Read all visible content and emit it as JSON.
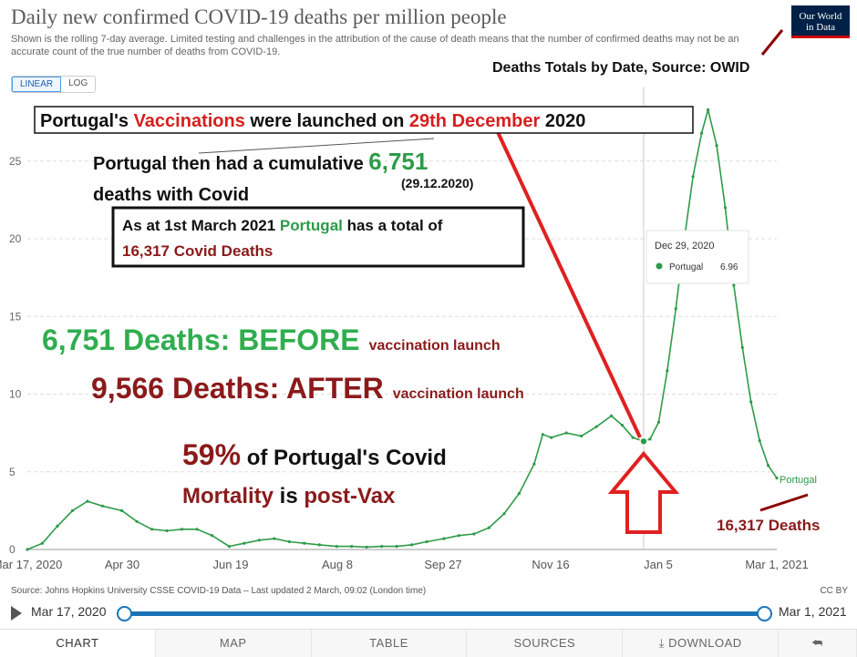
{
  "header": {
    "title": "Daily new confirmed COVID-19 deaths per million people",
    "subtitle": "Shown is the rolling 7-day average. Limited testing and challenges in the attribution of the cause of death means that the number of confirmed deaths may not be an accurate count of the true number of deaths from COVID-19.",
    "logo_line1": "Our World",
    "logo_line2": "in Data",
    "logo_icon": "owid-logo",
    "scale_linear": "LINEAR",
    "scale_log": "LOG"
  },
  "annotations": {
    "source_note": "Deaths Totals by Date, Source: OWID",
    "launch_p1": "Portugal's ",
    "launch_p2": "Vaccinations",
    "launch_p3": " were launched on ",
    "launch_p4": "29th December",
    "launch_p5": " 2020",
    "cum_text": "Portugal then had a cumulative ",
    "cum_value": "6,751",
    "cum_date": "(29.12.2020)",
    "cum_line2": "deaths with Covid",
    "total_line1": "As at 1st March 2021 ",
    "total_country": "Portugal",
    "total_line1b": " has a total of",
    "total_line2": "16,317 Covid Deaths",
    "before_big": "6,751 Deaths: BEFORE",
    "before_small": "vaccination launch",
    "after_big": "9,566 Deaths: AFTER",
    "after_small": "vaccination launch",
    "pct_value": "59%",
    "pct_text": " of Portugal's Covid",
    "pct_word1": "Mortality",
    "pct_text2": " is ",
    "pct_word2": "post-Vax",
    "final_label": "16,317  Deaths",
    "line_label": "Portugal"
  },
  "tooltip": {
    "date": "Dec 29, 2020",
    "country": "Portugal",
    "value": "6.96"
  },
  "chart_data": {
    "type": "line",
    "title": "Daily new confirmed COVID-19 deaths per million people",
    "xlabel": "",
    "ylabel": "",
    "ylim": [
      0,
      27
    ],
    "yticks": [
      0,
      5,
      10,
      15,
      20,
      25
    ],
    "x_ticks": [
      "Mar 17, 2020",
      "Apr 30",
      "Jun 19",
      "Aug 8",
      "Sep 27",
      "Nov 16",
      "Jan 5",
      "Mar 1, 2021"
    ],
    "grid": true,
    "series": [
      {
        "name": "Portugal",
        "color": "#2e9b48",
        "points": [
          [
            "2020-03-17",
            0.0
          ],
          [
            "2020-03-24",
            0.4
          ],
          [
            "2020-03-31",
            1.5
          ],
          [
            "2020-04-07",
            2.5
          ],
          [
            "2020-04-14",
            3.1
          ],
          [
            "2020-04-21",
            2.8
          ],
          [
            "2020-04-30",
            2.5
          ],
          [
            "2020-05-07",
            1.8
          ],
          [
            "2020-05-14",
            1.3
          ],
          [
            "2020-05-21",
            1.2
          ],
          [
            "2020-05-28",
            1.3
          ],
          [
            "2020-06-04",
            1.3
          ],
          [
            "2020-06-11",
            0.9
          ],
          [
            "2020-06-19",
            0.2
          ],
          [
            "2020-06-26",
            0.4
          ],
          [
            "2020-07-03",
            0.6
          ],
          [
            "2020-07-10",
            0.7
          ],
          [
            "2020-07-17",
            0.5
          ],
          [
            "2020-07-24",
            0.4
          ],
          [
            "2020-07-31",
            0.3
          ],
          [
            "2020-08-08",
            0.2
          ],
          [
            "2020-08-15",
            0.2
          ],
          [
            "2020-08-22",
            0.15
          ],
          [
            "2020-08-29",
            0.2
          ],
          [
            "2020-09-05",
            0.2
          ],
          [
            "2020-09-12",
            0.3
          ],
          [
            "2020-09-19",
            0.5
          ],
          [
            "2020-09-27",
            0.7
          ],
          [
            "2020-10-04",
            0.9
          ],
          [
            "2020-10-11",
            1.0
          ],
          [
            "2020-10-18",
            1.4
          ],
          [
            "2020-10-25",
            2.3
          ],
          [
            "2020-11-01",
            3.6
          ],
          [
            "2020-11-08",
            5.5
          ],
          [
            "2020-11-12",
            7.4
          ],
          [
            "2020-11-16",
            7.2
          ],
          [
            "2020-11-23",
            7.5
          ],
          [
            "2020-11-30",
            7.3
          ],
          [
            "2020-12-07",
            7.9
          ],
          [
            "2020-12-14",
            8.6
          ],
          [
            "2020-12-19",
            8.0
          ],
          [
            "2020-12-24",
            7.2
          ],
          [
            "2020-12-29",
            6.96
          ],
          [
            "2021-01-01",
            7.1
          ],
          [
            "2021-01-05",
            8.2
          ],
          [
            "2021-01-09",
            11.5
          ],
          [
            "2021-01-13",
            15.5
          ],
          [
            "2021-01-17",
            20.0
          ],
          [
            "2021-01-21",
            24.0
          ],
          [
            "2021-01-25",
            26.8
          ],
          [
            "2021-01-28",
            28.3
          ],
          [
            "2021-02-01",
            26.0
          ],
          [
            "2021-02-05",
            22.0
          ],
          [
            "2021-02-09",
            17.0
          ],
          [
            "2021-02-13",
            13.0
          ],
          [
            "2021-02-17",
            9.5
          ],
          [
            "2021-02-21",
            7.0
          ],
          [
            "2021-02-25",
            5.4
          ],
          [
            "2021-03-01",
            4.6
          ]
        ]
      }
    ],
    "highlight": {
      "date": "2020-12-29",
      "value": 6.96
    }
  },
  "footer": {
    "source": "Source: Johns Hopkins University CSSE COVID-19 Data – Last updated 2 March, 09:02 (London time)",
    "license": "CC BY",
    "timeline_start": "Mar 17, 2020",
    "timeline_end": "Mar 1, 2021",
    "tabs": [
      "CHART",
      "MAP",
      "TABLE",
      "SOURCES",
      "DOWNLOAD"
    ],
    "download_icon": "download-icon",
    "share_icon": "share-icon"
  }
}
